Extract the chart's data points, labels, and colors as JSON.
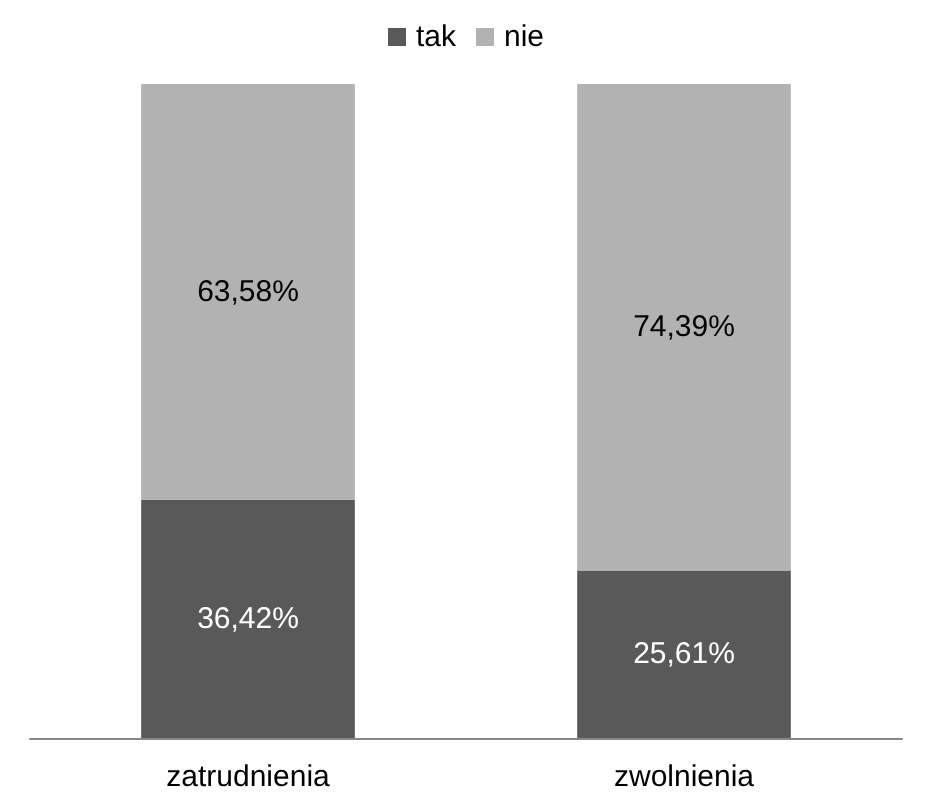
{
  "chart_data": {
    "type": "bar",
    "stacked": true,
    "categories": [
      "zatrudnienia",
      "zwolnienia"
    ],
    "legend": "top",
    "series": [
      {
        "name": "tak",
        "color": "#595959",
        "values": [
          36.42,
          25.61
        ],
        "value_labels": [
          "36,42%",
          "25,61%"
        ]
      },
      {
        "name": "nie",
        "color": "#b2b2b2",
        "values": [
          63.58,
          74.39
        ],
        "value_labels": [
          "63,58%",
          "74,39%"
        ]
      }
    ]
  }
}
